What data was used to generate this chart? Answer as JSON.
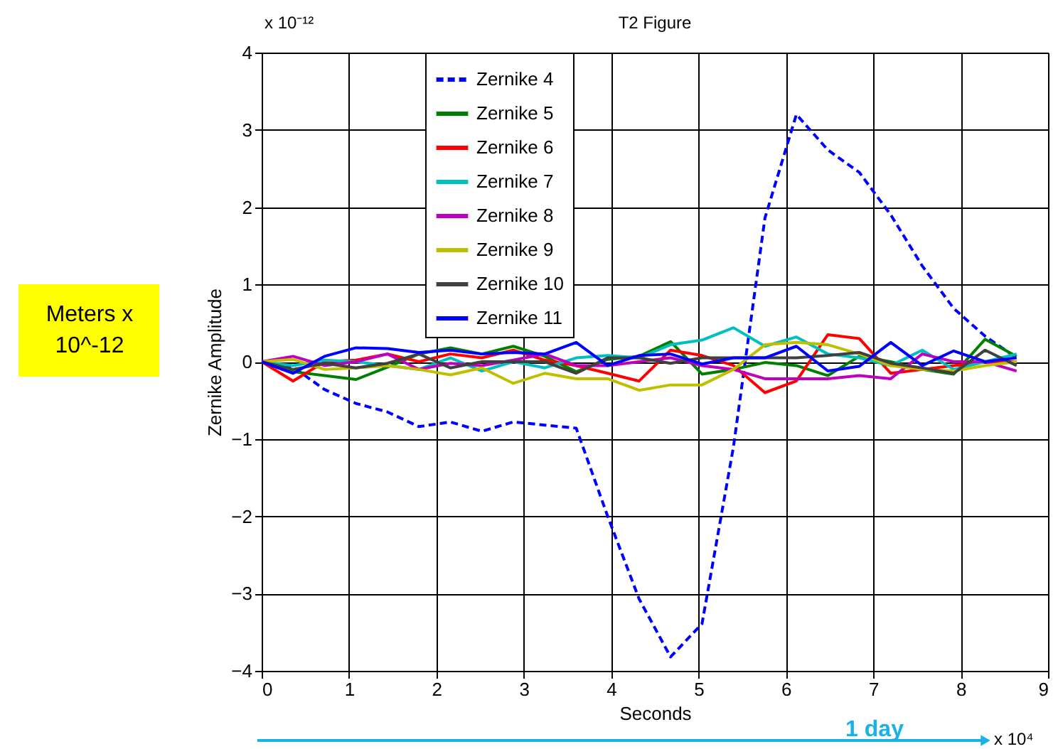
{
  "chart_data": {
    "type": "line",
    "title": "T2 Figure",
    "xlabel": "Seconds",
    "ylabel": "Zernike Amplitude",
    "x": [
      0,
      0.36,
      0.72,
      1.08,
      1.44,
      1.8,
      2.16,
      2.52,
      2.88,
      3.24,
      3.6,
      3.96,
      4.32,
      4.68,
      5.04,
      5.4,
      5.76,
      6.12,
      6.48,
      6.84,
      7.2,
      7.56,
      7.92,
      8.28,
      8.64
    ],
    "series": [
      {
        "name": "Zernike 4",
        "color": "#0000ff",
        "line_style": "dashed",
        "values": [
          0,
          -0.07,
          -0.36,
          -0.54,
          -0.65,
          -0.84,
          -0.78,
          -0.9,
          -0.78,
          -0.82,
          -0.86,
          -2.0,
          -3.07,
          -3.82,
          -3.39,
          -1.1,
          1.86,
          3.2,
          2.74,
          2.45,
          1.9,
          1.24,
          0.69,
          0.33,
          0.05
        ]
      },
      {
        "name": "Zernike 5",
        "color": "#008000",
        "line_style": "solid",
        "values": [
          0,
          -0.13,
          -0.18,
          -0.23,
          -0.07,
          0.1,
          0.18,
          0.1,
          0.2,
          0.07,
          -0.13,
          0.03,
          0.07,
          0.26,
          -0.16,
          -0.1,
          -0.01,
          -0.05,
          -0.18,
          0.07,
          0,
          -0.1,
          -0.16,
          0.29,
          0.07
        ]
      },
      {
        "name": "Zernike 6",
        "color": "#ff0000",
        "line_style": "solid",
        "values": [
          0,
          -0.25,
          0,
          0.02,
          0.1,
          0,
          0.1,
          0.05,
          0.15,
          0.02,
          -0.05,
          -0.15,
          -0.25,
          0.15,
          0.08,
          -0.05,
          -0.4,
          -0.25,
          0.35,
          0.3,
          -0.15,
          -0.1,
          -0.05,
          0,
          0
        ]
      },
      {
        "name": "Zernike 7",
        "color": "#00bfbf",
        "line_style": "solid",
        "values": [
          0,
          -0.05,
          0.02,
          0,
          -0.05,
          -0.1,
          0.05,
          -0.12,
          0,
          -0.08,
          0.05,
          0.08,
          0.05,
          0.22,
          0.28,
          0.44,
          0.2,
          0.32,
          0.1,
          0.05,
          -0.05,
          0.15,
          -0.1,
          0,
          0.1
        ]
      },
      {
        "name": "Zernike 8",
        "color": "#bf00bf",
        "line_style": "solid",
        "values": [
          0,
          0.07,
          -0.05,
          0,
          0.1,
          -0.1,
          -0.02,
          -0.05,
          0.02,
          0.1,
          -0.05,
          -0.05,
          0,
          0.05,
          -0.05,
          -0.1,
          -0.22,
          -0.22,
          -0.22,
          -0.18,
          -0.22,
          0.1,
          0,
          0,
          -0.12
        ]
      },
      {
        "name": "Zernike 9",
        "color": "#bfbf00",
        "line_style": "solid",
        "values": [
          0,
          0.03,
          -0.1,
          -0.08,
          -0.05,
          -0.1,
          -0.17,
          -0.08,
          -0.28,
          -0.15,
          -0.22,
          -0.22,
          -0.37,
          -0.3,
          -0.3,
          -0.1,
          0.22,
          0.25,
          0.22,
          0.1,
          -0.05,
          -0.1,
          -0.12,
          -0.05,
          0
        ]
      },
      {
        "name": "Zernike 10",
        "color": "#404040",
        "line_style": "solid",
        "values": [
          0,
          -0.1,
          -0.02,
          -0.08,
          -0.02,
          0.1,
          -0.08,
          0,
          0,
          0,
          -0.15,
          0.05,
          0.05,
          -0.02,
          0.05,
          0.05,
          0.05,
          0.05,
          0.08,
          0.12,
          -0.02,
          -0.08,
          -0.15,
          0.15,
          -0.05
        ]
      },
      {
        "name": "Zernike 11",
        "color": "#0000ff",
        "line_style": "solid",
        "values": [
          0,
          -0.15,
          0.07,
          0.18,
          0.17,
          0.12,
          0.15,
          0.1,
          0.12,
          0.1,
          0.25,
          -0.05,
          0.08,
          0.1,
          -0.03,
          0.05,
          0.05,
          0.2,
          -0.12,
          -0.06,
          0.25,
          -0.05,
          0.14,
          0,
          0.05
        ]
      }
    ],
    "xlim": [
      0,
      9
    ],
    "xticks": [
      0,
      1,
      2,
      3,
      4,
      5,
      6,
      7,
      8,
      9
    ],
    "ylim": [
      -4,
      4
    ],
    "yticks": [
      -4,
      -3,
      -2,
      -1,
      0,
      1,
      2,
      3,
      4
    ],
    "grid": true,
    "legend": "top left",
    "annotations": [
      "x 10⁻¹²",
      "x 10⁴",
      "Meters x\n10^-12",
      "1 day"
    ]
  }
}
